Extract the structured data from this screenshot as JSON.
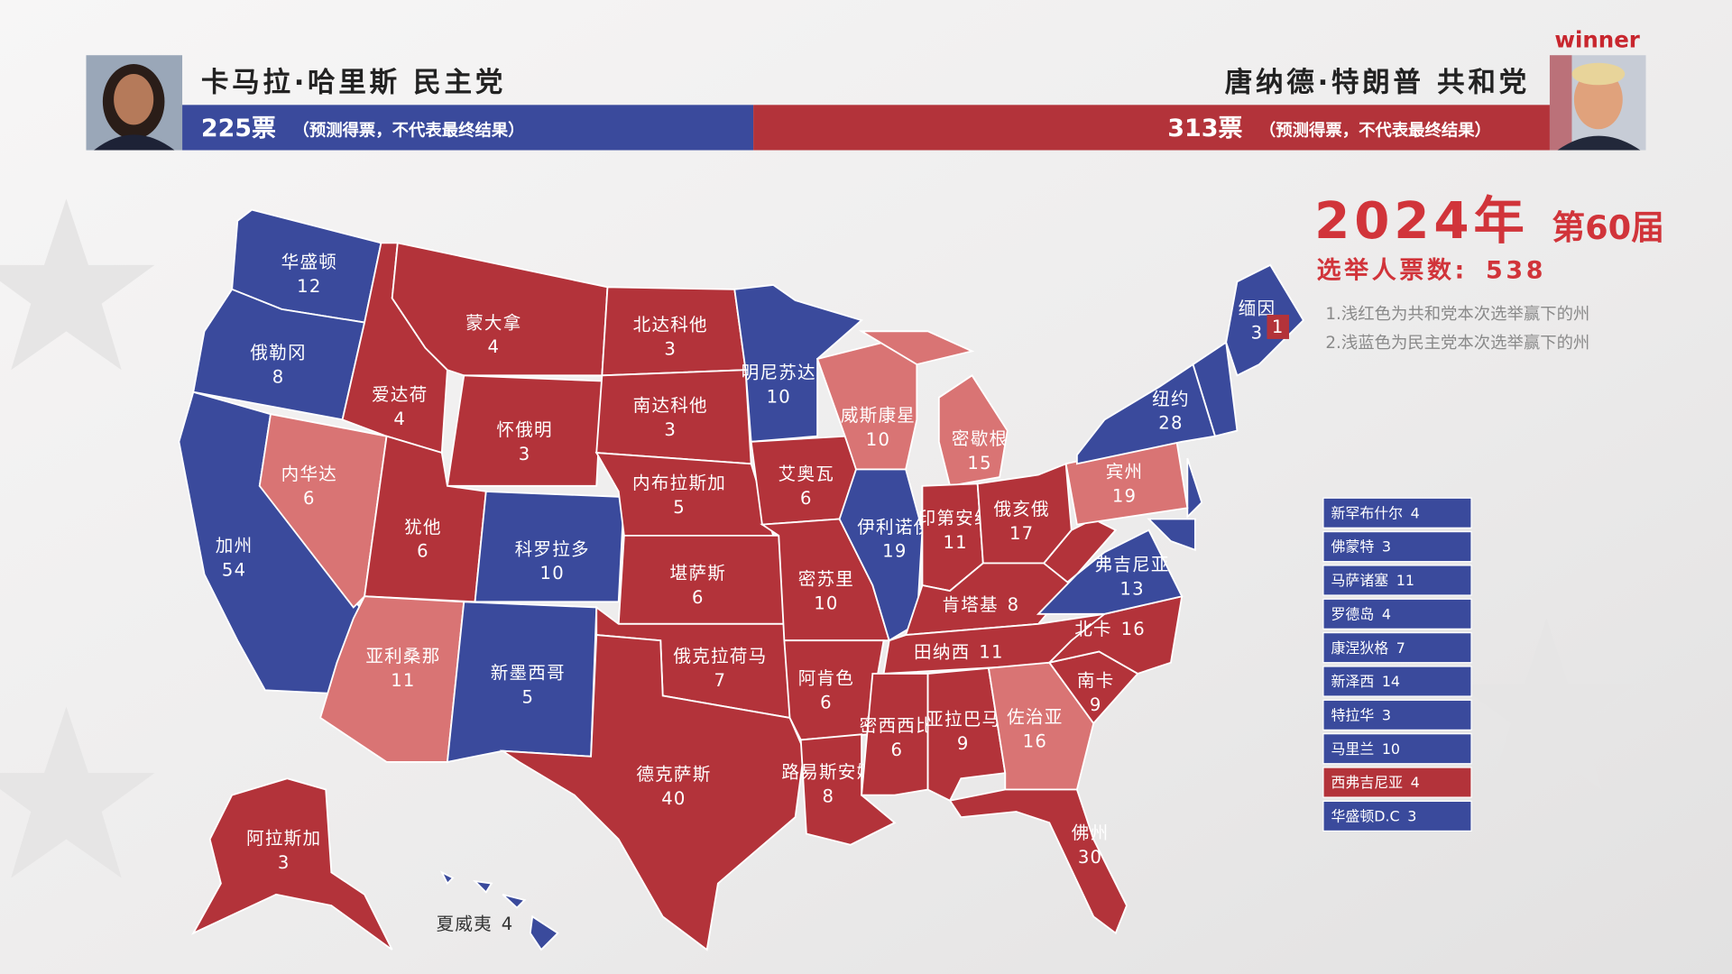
{
  "header": {
    "left": {
      "name": "卡马拉·哈里斯 民主党",
      "votes": "225票",
      "note": "（预测得票，不代表最终结果）",
      "color": "#3a4a9c"
    },
    "right": {
      "name": "唐纳德·特朗普 共和党",
      "votes": "313票",
      "note": "（预测得票，不代表最终结果）",
      "color": "#b3333a",
      "badge": "winner"
    }
  },
  "title": {
    "year": "2024年",
    "term": "第60届",
    "electors_label": "选举人票数:",
    "electors_total": 538
  },
  "notes": [
    "1.浅红色为共和党本次选举赢下的州",
    "2.浅蓝色为民主党本次选举赢下的州"
  ],
  "states": [
    {
      "name": "华盛顿",
      "votes": 12,
      "color": "#3a4a9c"
    },
    {
      "name": "俄勒冈",
      "votes": 8,
      "color": "#3a4a9c"
    },
    {
      "name": "加州",
      "votes": 54,
      "color": "#3a4a9c"
    },
    {
      "name": "内华达",
      "votes": 6,
      "color": "#d97474"
    },
    {
      "name": "爱达荷",
      "votes": 4,
      "color": "#b3333a"
    },
    {
      "name": "蒙大拿",
      "votes": 4,
      "color": "#b3333a"
    },
    {
      "name": "怀俄明",
      "votes": 3,
      "color": "#b3333a"
    },
    {
      "name": "犹他",
      "votes": 6,
      "color": "#b3333a"
    },
    {
      "name": "科罗拉多",
      "votes": 10,
      "color": "#3a4a9c"
    },
    {
      "name": "亚利桑那",
      "votes": 11,
      "color": "#d97474"
    },
    {
      "name": "新墨西哥",
      "votes": 5,
      "color": "#3a4a9c"
    },
    {
      "name": "北达科他",
      "votes": 3,
      "color": "#b3333a"
    },
    {
      "name": "南达科他",
      "votes": 3,
      "color": "#b3333a"
    },
    {
      "name": "内布拉斯加",
      "votes": 5,
      "color": "#b3333a"
    },
    {
      "name": "堪萨斯",
      "votes": 6,
      "color": "#b3333a"
    },
    {
      "name": "俄克拉荷马",
      "votes": 7,
      "color": "#b3333a"
    },
    {
      "name": "德克萨斯",
      "votes": 40,
      "color": "#b3333a"
    },
    {
      "name": "明尼苏达",
      "votes": 10,
      "color": "#3a4a9c"
    },
    {
      "name": "艾奥瓦",
      "votes": 6,
      "color": "#b3333a"
    },
    {
      "name": "密苏里",
      "votes": 10,
      "color": "#b3333a"
    },
    {
      "name": "阿肯色",
      "votes": 6,
      "color": "#b3333a"
    },
    {
      "name": "路易斯安娜",
      "votes": 8,
      "color": "#b3333a"
    },
    {
      "name": "威斯康星",
      "votes": 10,
      "color": "#d97474"
    },
    {
      "name": "伊利诺伊",
      "votes": 19,
      "color": "#3a4a9c"
    },
    {
      "name": "密歇根",
      "votes": 15,
      "color": "#d97474"
    },
    {
      "name": "印第安纳",
      "votes": 11,
      "color": "#b3333a"
    },
    {
      "name": "俄亥俄",
      "votes": 17,
      "color": "#b3333a"
    },
    {
      "name": "肯塔基",
      "votes": 8,
      "color": "#b3333a"
    },
    {
      "name": "田纳西",
      "votes": 11,
      "color": "#b3333a"
    },
    {
      "name": "密西西比",
      "votes": 6,
      "color": "#b3333a"
    },
    {
      "name": "亚拉巴马",
      "votes": 9,
      "color": "#b3333a"
    },
    {
      "name": "佐治亚",
      "votes": 16,
      "color": "#d97474"
    },
    {
      "name": "佛州",
      "votes": 30,
      "color": "#b3333a"
    },
    {
      "name": "南卡",
      "votes": 9,
      "color": "#b3333a"
    },
    {
      "name": "北卡",
      "votes": 16,
      "color": "#b3333a"
    },
    {
      "name": "弗吉尼亚",
      "votes": 13,
      "color": "#3a4a9c"
    },
    {
      "name": "宾州",
      "votes": 19,
      "color": "#d97474"
    },
    {
      "name": "纽约",
      "votes": 28,
      "color": "#3a4a9c"
    },
    {
      "name": "缅因",
      "votes": 3,
      "color": "#3a4a9c"
    },
    {
      "name": "阿拉斯加",
      "votes": 3,
      "color": "#b3333a"
    },
    {
      "name": "夏威夷",
      "votes": 4,
      "color": "#3a4a9c"
    }
  ],
  "maine_district": {
    "votes": 1,
    "color": "#b3333a"
  },
  "small_states": [
    {
      "name": "新罕布什尔",
      "votes": 4,
      "color": "#3a4a9c"
    },
    {
      "name": "佛蒙特",
      "votes": 3,
      "color": "#3a4a9c"
    },
    {
      "name": "马萨诸塞",
      "votes": 11,
      "color": "#3a4a9c"
    },
    {
      "name": "罗德岛",
      "votes": 4,
      "color": "#3a4a9c"
    },
    {
      "name": "康涅狄格",
      "votes": 7,
      "color": "#3a4a9c"
    },
    {
      "name": "新泽西",
      "votes": 14,
      "color": "#3a4a9c"
    },
    {
      "name": "特拉华",
      "votes": 3,
      "color": "#3a4a9c"
    },
    {
      "name": "马里兰",
      "votes": 10,
      "color": "#3a4a9c"
    },
    {
      "name": "西弗吉尼亚",
      "votes": 4,
      "color": "#b3333a"
    },
    {
      "name": "华盛顿D.C",
      "votes": 3,
      "color": "#3a4a9c"
    }
  ]
}
